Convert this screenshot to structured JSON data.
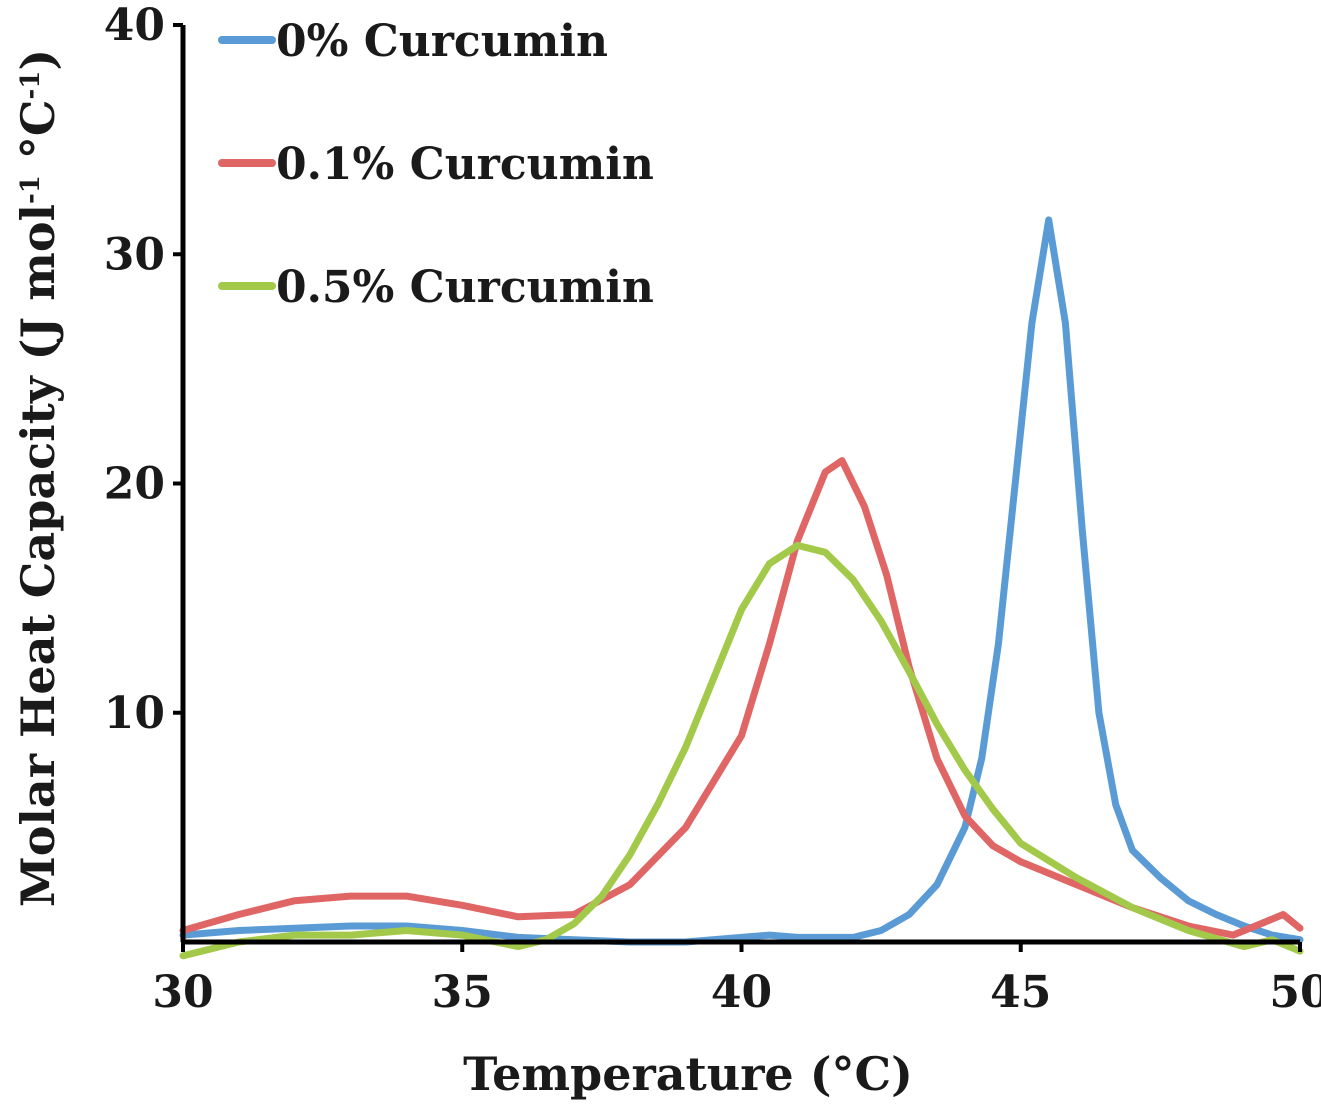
{
  "chart_data": {
    "type": "line",
    "title": "",
    "xlabel": "Temperature (°C)",
    "ylabel": "Molar Heat Capacity (J mol",
    "ylabel_sup1": "-1",
    "ylabel_mid": " °C",
    "ylabel_sup2": "-1",
    "ylabel_end": ")",
    "xlim": [
      30,
      50
    ],
    "ylim": [
      0,
      40
    ],
    "xticks": [
      30,
      35,
      40,
      45,
      50
    ],
    "yticks": [
      10,
      20,
      30,
      40
    ],
    "x_tick_labels": [
      "30",
      "35",
      "40",
      "45",
      "50"
    ],
    "y_tick_labels": [
      "10",
      "20",
      "30",
      "40"
    ],
    "grid": false,
    "legend_position": "top-left",
    "series": [
      {
        "name": "0% Curcumin",
        "color": "#5b9bd5",
        "x": [
          30,
          31,
          32,
          33,
          34,
          35,
          36,
          37,
          38,
          39,
          40,
          40.5,
          41,
          42,
          42.5,
          43,
          43.5,
          44,
          44.3,
          44.6,
          44.9,
          45.2,
          45.5,
          45.8,
          46.1,
          46.4,
          46.7,
          47,
          47.5,
          48,
          48.5,
          49,
          49.5,
          50
        ],
        "y": [
          0.3,
          0.5,
          0.6,
          0.7,
          0.7,
          0.5,
          0.2,
          0.1,
          0.0,
          0.0,
          0.2,
          0.3,
          0.2,
          0.2,
          0.5,
          1.2,
          2.5,
          5.0,
          8.0,
          13.0,
          20.0,
          27.0,
          31.5,
          27.0,
          18.0,
          10.0,
          6.0,
          4.0,
          2.8,
          1.8,
          1.2,
          0.7,
          0.3,
          0.1
        ]
      },
      {
        "name": "0.1% Curcumin",
        "color": "#e06666",
        "x": [
          30,
          31,
          32,
          33,
          34,
          35,
          36,
          37,
          38,
          39,
          40,
          40.5,
          41,
          41.5,
          41.8,
          42.2,
          42.6,
          43,
          43.5,
          44,
          44.5,
          45,
          46,
          47,
          48,
          48.8,
          49.3,
          49.7,
          50
        ],
        "y": [
          0.5,
          1.2,
          1.8,
          2.0,
          2.0,
          1.6,
          1.1,
          1.2,
          2.5,
          5.0,
          9.0,
          13.0,
          17.5,
          20.5,
          21.0,
          19.0,
          16.0,
          12.0,
          8.0,
          5.5,
          4.2,
          3.5,
          2.5,
          1.5,
          0.7,
          0.3,
          0.8,
          1.2,
          0.6
        ]
      },
      {
        "name": "0.5% Curcumin",
        "color": "#a3c94a",
        "x": [
          30,
          31,
          32,
          33,
          34,
          35,
          36,
          36.5,
          37,
          37.5,
          38,
          38.5,
          39,
          39.5,
          40,
          40.5,
          41,
          41.5,
          42,
          42.5,
          43,
          43.5,
          44,
          44.5,
          45,
          46,
          47,
          48,
          49,
          49.5,
          50
        ],
        "y": [
          -0.6,
          0.0,
          0.3,
          0.3,
          0.5,
          0.3,
          -0.2,
          0.1,
          0.8,
          2.0,
          3.8,
          6.0,
          8.5,
          11.5,
          14.5,
          16.5,
          17.3,
          17.0,
          15.8,
          14.0,
          11.8,
          9.5,
          7.5,
          5.8,
          4.3,
          2.8,
          1.5,
          0.5,
          -0.2,
          0.1,
          -0.4
        ]
      }
    ]
  }
}
